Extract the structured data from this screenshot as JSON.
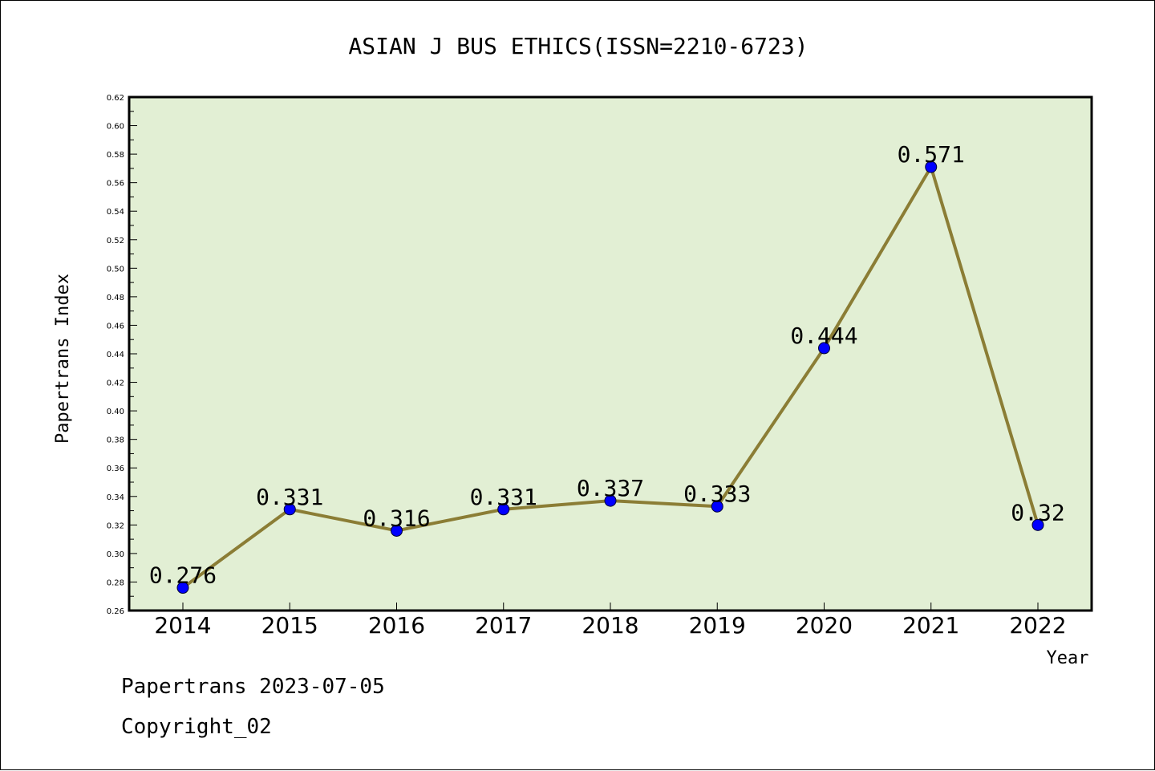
{
  "footer": {
    "line1": "Papertrans 2023-07-05",
    "line2": "Copyright_02"
  },
  "chart_data": {
    "type": "line",
    "title": "ASIAN J BUS ETHICS(ISSN=2210-6723)",
    "xlabel": "Year",
    "ylabel": "Papertrans Index",
    "categories": [
      "2014",
      "2015",
      "2016",
      "2017",
      "2018",
      "2019",
      "2020",
      "2021",
      "2022"
    ],
    "values": [
      0.276,
      0.331,
      0.316,
      0.331,
      0.337,
      0.333,
      0.444,
      0.571,
      0.32
    ],
    "data_labels": [
      "0.276",
      "0.331",
      "0.316",
      "0.331",
      "0.337",
      "0.333",
      "0.444",
      "0.571",
      "0.32"
    ],
    "ylim": [
      0.26,
      0.62
    ],
    "yticks": [
      "0.26",
      "0.28",
      "0.30",
      "0.32",
      "0.34",
      "0.36",
      "0.38",
      "0.40",
      "0.42",
      "0.44",
      "0.46",
      "0.48",
      "0.50",
      "0.52",
      "0.54",
      "0.56",
      "0.58",
      "0.60",
      "0.62"
    ],
    "grid": false,
    "colors": {
      "plot_background": "#e2efd4",
      "line": "#8b7d35",
      "marker": "#0000ff"
    }
  }
}
